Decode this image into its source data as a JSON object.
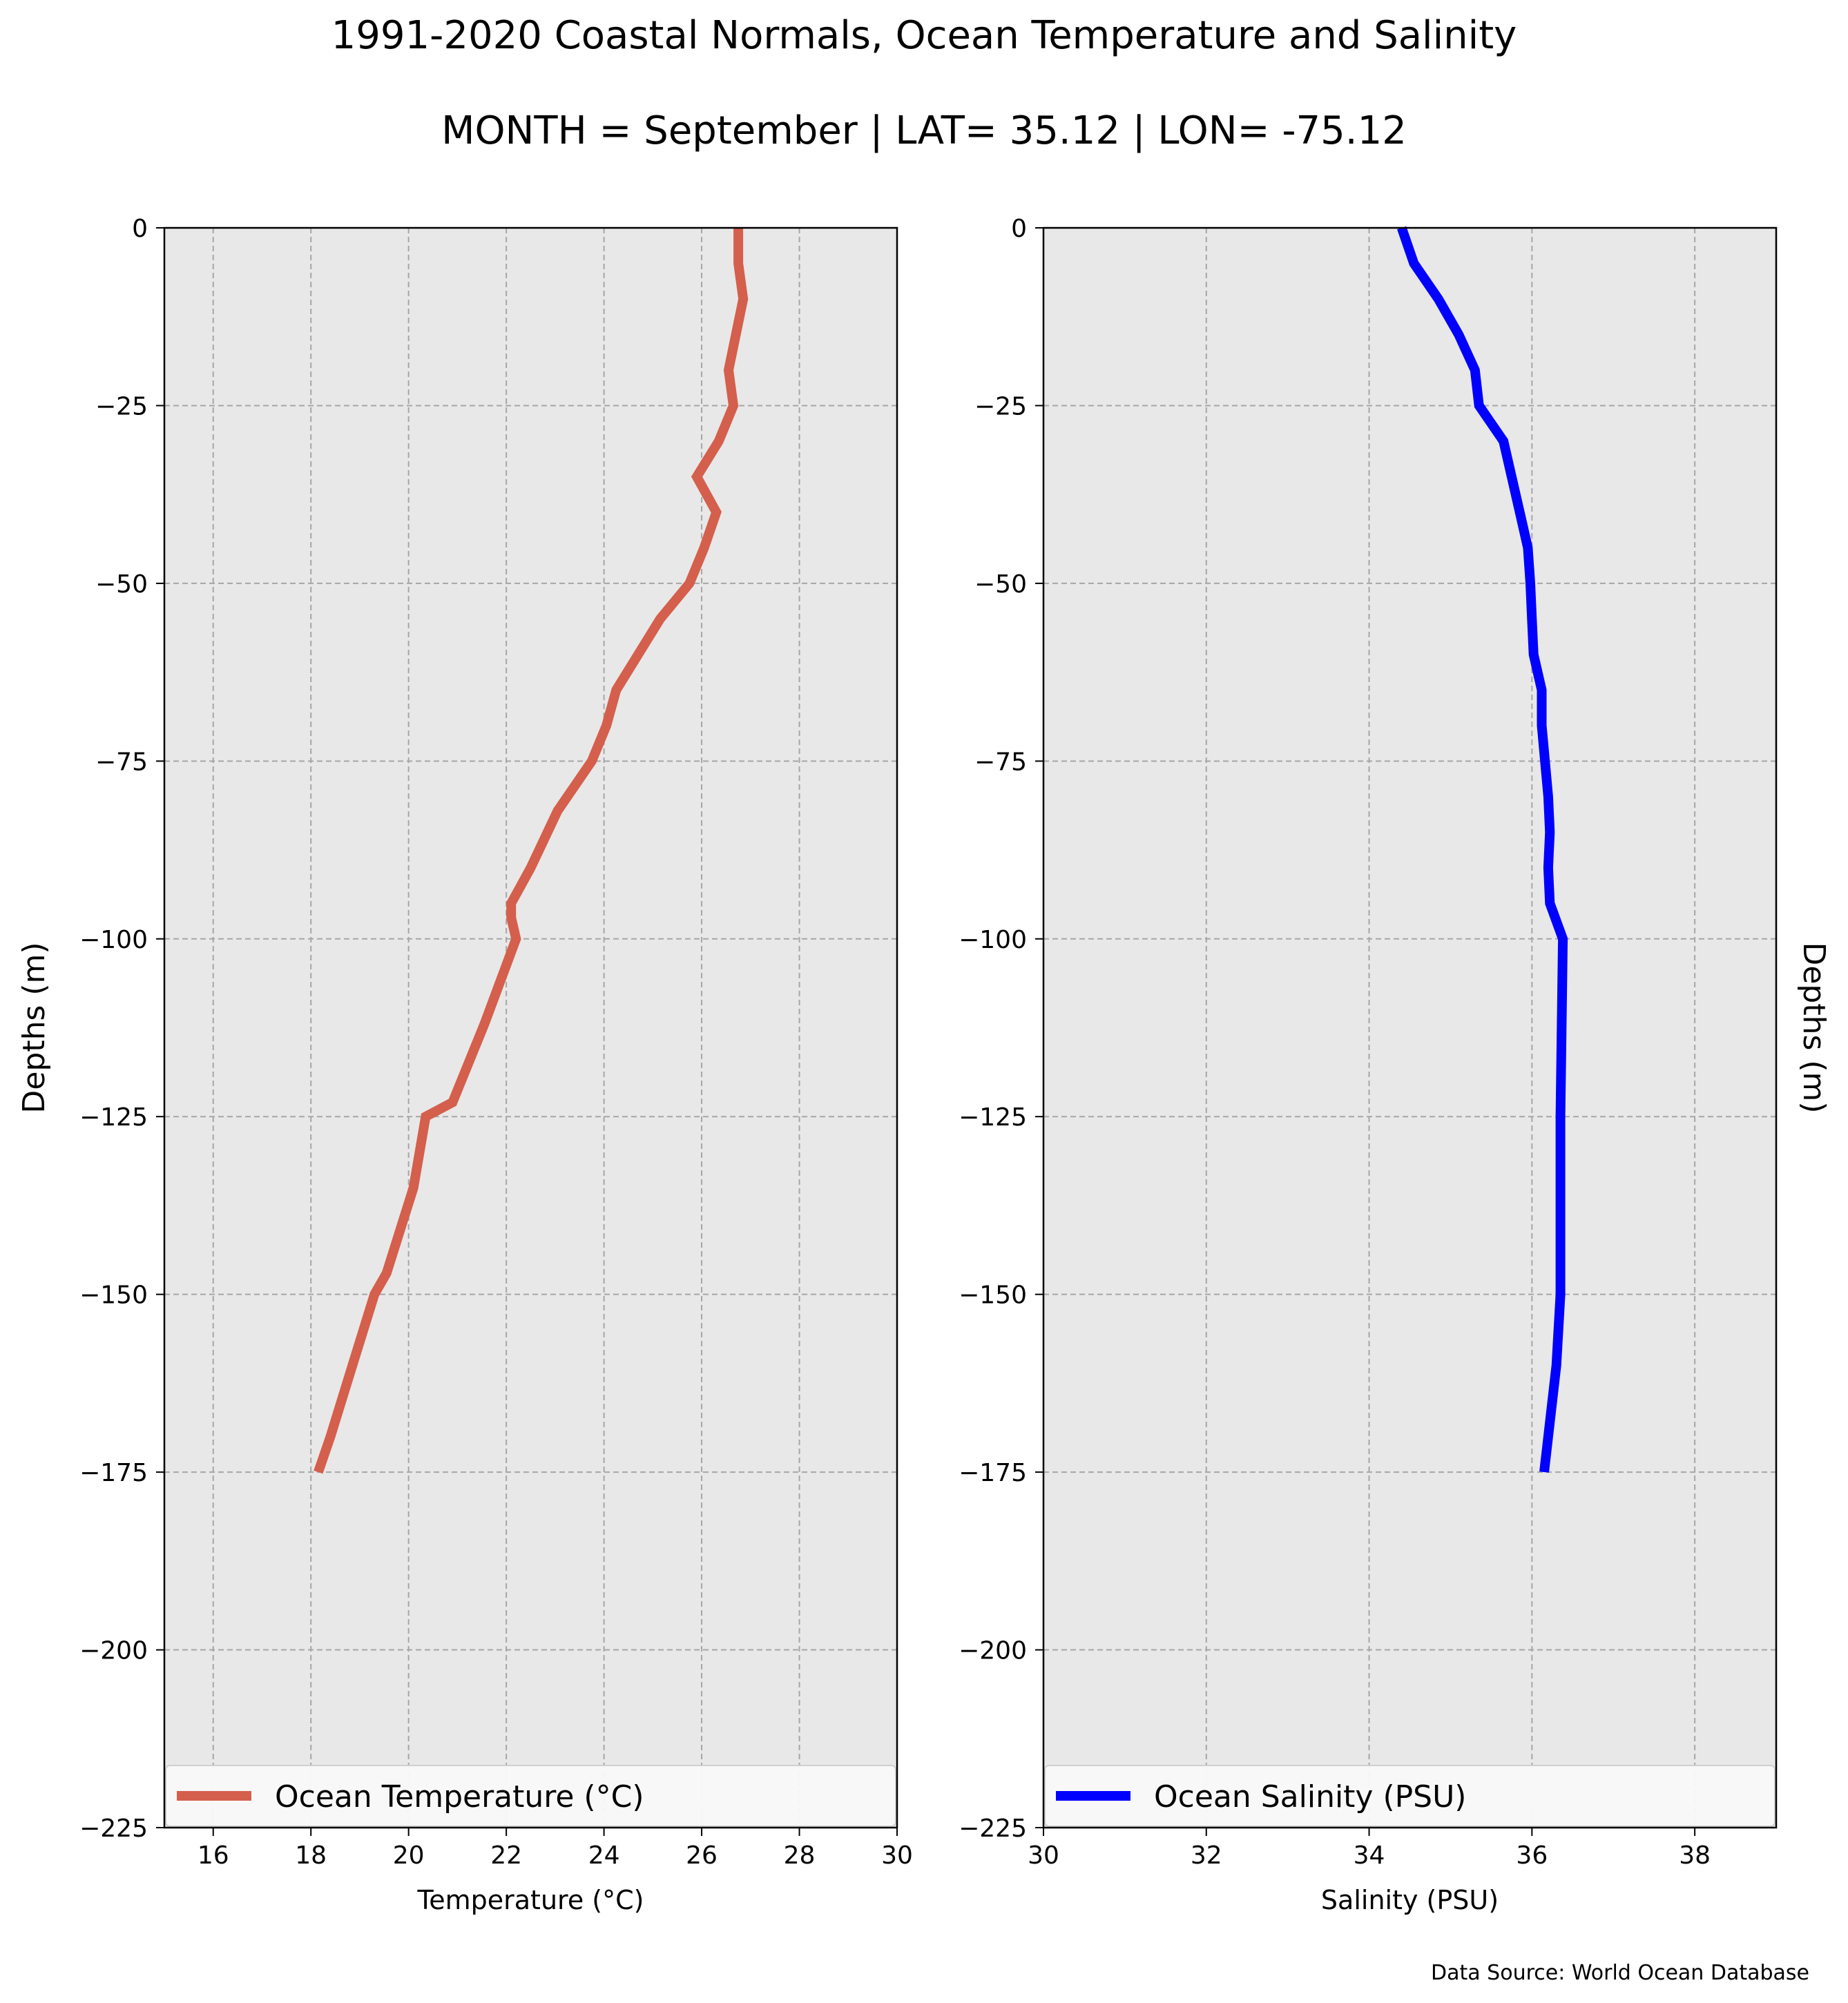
{
  "title": "1991-2020 Coastal Normals, Ocean Temperature and Salinity",
  "subtitle": "MONTH = September | LAT= 35.12 | LON= -75.12",
  "source": "Data Source: World Ocean Database",
  "chart_data": [
    {
      "type": "line",
      "xlabel": "Temperature (°C)",
      "ylabel": "Depths (m)",
      "xlim": [
        15,
        30
      ],
      "ylim": [
        -225,
        0
      ],
      "xticks": [
        16,
        18,
        20,
        22,
        24,
        26,
        28,
        30
      ],
      "yticks": [
        0,
        -25,
        -50,
        -75,
        -100,
        -125,
        -150,
        -175,
        -200,
        -225
      ],
      "grid": true,
      "legend_position": "bottom",
      "series": [
        {
          "name": "Ocean Temperature (°C)",
          "color": "#d45f4c",
          "x": [
            26.75,
            26.75,
            26.85,
            26.7,
            26.55,
            26.65,
            26.35,
            25.9,
            26.3,
            26.05,
            25.75,
            25.15,
            24.7,
            24.25,
            24.05,
            23.75,
            23.05,
            22.5,
            22.1,
            22.1,
            22.2,
            21.55,
            20.9,
            20.35,
            20.1,
            19.55,
            19.3,
            18.85,
            18.4,
            18.15
          ],
          "y": [
            0,
            -5,
            -10,
            -15,
            -20,
            -25,
            -30,
            -35,
            -40,
            -45,
            -50,
            -55,
            -60,
            -65,
            -70,
            -75,
            -82,
            -90,
            -95,
            -97,
            -100,
            -112,
            -123,
            -125,
            -135,
            -147,
            -150,
            -160,
            -170,
            -175
          ]
        }
      ]
    },
    {
      "type": "line",
      "xlabel": "Salinity (PSU)",
      "ylabel": "Depths (m)",
      "xlim": [
        30,
        39
      ],
      "ylim": [
        -225,
        0
      ],
      "xticks": [
        30,
        32,
        34,
        36,
        38
      ],
      "yticks": [
        0,
        -25,
        -50,
        -75,
        -100,
        -125,
        -150,
        -175,
        -200,
        -225
      ],
      "grid": true,
      "legend_position": "bottom",
      "series": [
        {
          "name": "Ocean Salinity (PSU)",
          "color": "#0000ff",
          "x": [
            34.4,
            34.55,
            34.85,
            35.1,
            35.3,
            35.35,
            35.65,
            35.75,
            35.85,
            35.95,
            35.98,
            36.0,
            36.02,
            36.12,
            36.12,
            36.16,
            36.2,
            36.22,
            36.2,
            36.22,
            36.38,
            36.35,
            36.35,
            36.35,
            36.3,
            36.2,
            36.15
          ],
          "y": [
            0,
            -5,
            -10,
            -15,
            -20,
            -25,
            -30,
            -35,
            -40,
            -45,
            -50,
            -55,
            -60,
            -65,
            -70,
            -75,
            -80,
            -85,
            -90,
            -95,
            -100,
            -125,
            -135,
            -150,
            -160,
            -170,
            -175
          ]
        }
      ]
    }
  ]
}
